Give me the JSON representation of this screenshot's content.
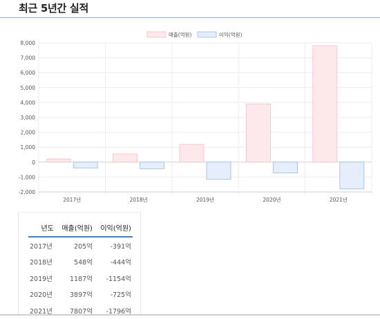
{
  "section_title": "최근 5년간 실적",
  "chart_data": {
    "type": "bar",
    "categories": [
      "2017년",
      "2018년",
      "2019년",
      "2020년",
      "2021년"
    ],
    "series": [
      {
        "name": "매출(억원)",
        "values": [
          205,
          548,
          1187,
          3897,
          7807
        ],
        "color": "#f6c8cf",
        "fill": "#fde9ec"
      },
      {
        "name": "이익(억원)",
        "values": [
          -391,
          -444,
          -1154,
          -725,
          -1796
        ],
        "color": "#a9c6e8",
        "fill": "#e5eefa"
      }
    ],
    "ylim": [
      -2000,
      8000
    ],
    "yticks": [
      -2000,
      -1000,
      0,
      1000,
      2000,
      3000,
      4000,
      5000,
      6000,
      7000,
      8000
    ],
    "ytick_labels": [
      "-2,000",
      "-1,000",
      "0",
      "1,000",
      "2,000",
      "3,000",
      "4,000",
      "5,000",
      "6,000",
      "7,000",
      "8,000"
    ],
    "title": "",
    "xlabel": "",
    "ylabel": "",
    "legend_position": "top-center",
    "grid": true
  },
  "table": {
    "headers": [
      "년도",
      "매출(억원)",
      "이익(억원)"
    ],
    "rows": [
      [
        "2017년",
        "205억",
        "-391억"
      ],
      [
        "2018년",
        "548억",
        "-444억"
      ],
      [
        "2019년",
        "1187억",
        "-1154억"
      ],
      [
        "2020년",
        "3897억",
        "-725억"
      ],
      [
        "2021년",
        "7807억",
        "-1796억"
      ]
    ]
  }
}
